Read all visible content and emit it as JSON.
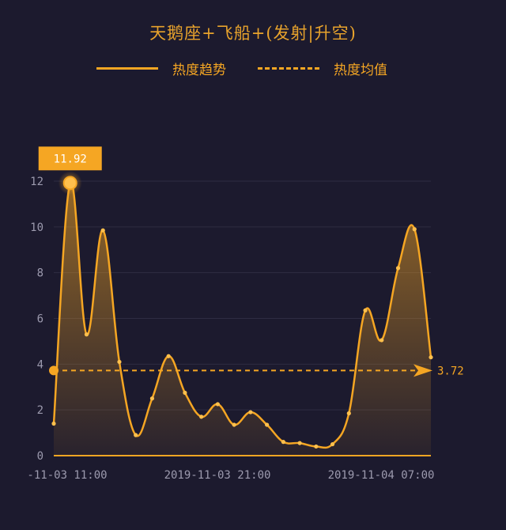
{
  "chart_data": {
    "type": "line",
    "title": "天鹅座+飞船+(发射|升空)",
    "x_ticks": [
      "-11-03 11:00",
      "2019-11-03 21:00",
      "2019-11-04 07:00"
    ],
    "ylim": [
      0,
      12.5
    ],
    "y_ticks": [
      0,
      2,
      4,
      6,
      8,
      10,
      12
    ],
    "series": [
      {
        "name": "热度趋势",
        "style": "solid",
        "values": [
          1.4,
          11.92,
          5.3,
          9.85,
          4.1,
          0.9,
          2.5,
          4.35,
          2.75,
          1.7,
          2.25,
          1.35,
          1.9,
          1.35,
          0.6,
          0.55,
          0.4,
          0.5,
          1.85,
          6.35,
          5.05,
          8.2,
          9.9,
          4.3
        ]
      },
      {
        "name": "热度均值",
        "style": "dashed",
        "value": 3.72
      }
    ],
    "max_label": "11.92",
    "mean_label": "3.72",
    "grid": true,
    "legend_position": "top-center"
  },
  "colors": {
    "background": "#1c1a2e",
    "accent": "#f5a623",
    "accent_light": "#ffc04d",
    "grid": "#2e2c42",
    "axis_text": "#9c9aae",
    "title": "#e8a32c"
  }
}
